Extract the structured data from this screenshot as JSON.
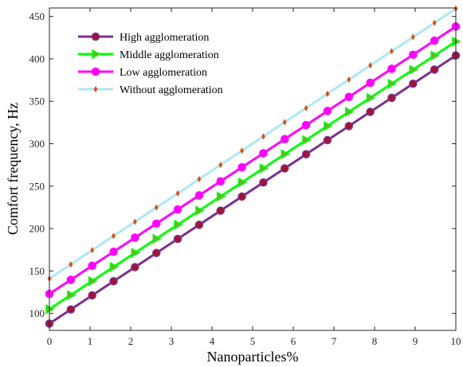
{
  "chart_data": {
    "type": "line",
    "xlabel": "Nanoparticles%",
    "ylabel": "Comfort frequency, Hz",
    "xlim": [
      0,
      10
    ],
    "ylim": [
      80,
      460
    ],
    "xticks": [
      0,
      1,
      2,
      3,
      4,
      5,
      6,
      7,
      8,
      9,
      10
    ],
    "yticks": [
      100,
      150,
      200,
      250,
      300,
      350,
      400,
      450
    ],
    "grid": false,
    "legend_position": "top-left",
    "x": [
      0,
      0.5263,
      1.0526,
      1.5789,
      2.1053,
      2.6316,
      3.1579,
      3.6842,
      4.2105,
      4.7368,
      5.2632,
      5.7895,
      6.3158,
      6.8421,
      7.3684,
      7.8947,
      8.4211,
      8.9474,
      9.4737,
      10
    ],
    "series": [
      {
        "name": "High agglomeration",
        "color": "#7E2F8E",
        "marker": "circle",
        "marker_fill": "#A2142F",
        "values": [
          88,
          104.6,
          121.3,
          137.9,
          154.5,
          171.2,
          187.8,
          204.4,
          221.1,
          237.7,
          254.3,
          270.9,
          287.6,
          304.2,
          320.8,
          337.5,
          354.1,
          370.7,
          387.4,
          404
        ]
      },
      {
        "name": "Middle agglomeration",
        "color": "#00FF00",
        "marker": "triangle-right",
        "marker_fill": "#77AC30",
        "values": [
          105,
          121.6,
          138.2,
          154.8,
          171.4,
          188.0,
          204.6,
          221.2,
          237.8,
          254.4,
          271.1,
          287.7,
          304.3,
          320.9,
          337.5,
          354.1,
          370.7,
          387.3,
          403.9,
          420.5
        ]
      },
      {
        "name": "Low agglomeration",
        "color": "#FF00FF",
        "marker": "circle",
        "marker_fill": "#FF00FF",
        "values": [
          123,
          139.6,
          156.2,
          172.7,
          189.3,
          205.9,
          222.5,
          239.1,
          255.7,
          272.2,
          288.8,
          305.4,
          322.0,
          338.6,
          355.2,
          371.8,
          388.3,
          404.9,
          421.5,
          438.1
        ]
      },
      {
        "name": "Without agglomeration",
        "color": "#ADE8F4",
        "marker": "diamond",
        "marker_fill": "#D95319",
        "values": [
          141,
          157.8,
          174.5,
          191.3,
          208.0,
          224.8,
          241.5,
          258.3,
          275.0,
          291.8,
          308.5,
          325.3,
          342.0,
          358.8,
          375.5,
          392.3,
          409.0,
          425.8,
          442.5,
          459.3
        ]
      }
    ]
  }
}
